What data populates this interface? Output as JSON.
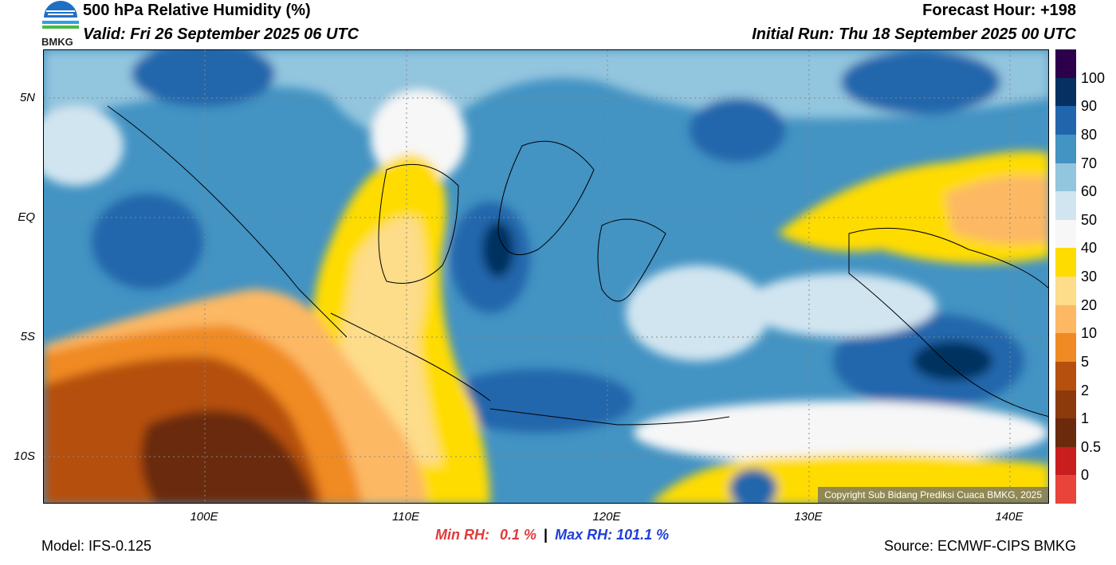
{
  "header": {
    "title": "500 hPa Relative Humidity (%)",
    "valid": "Valid: Fri 26 September 2025 06 UTC",
    "forecast_hour": "Forecast Hour: +198",
    "initial_run": "Initial Run: Thu 18 September 2025 00 UTC"
  },
  "logo": {
    "text": "BMKG",
    "icon": "bmkg-logo"
  },
  "map": {
    "lon_range": [
      92,
      142
    ],
    "lat_range": [
      -12.0,
      7.0
    ],
    "grid": true,
    "y_ticks": [
      {
        "lat": 5,
        "label": "5N"
      },
      {
        "lat": 0,
        "label": "EQ"
      },
      {
        "lat": -5,
        "label": "5S"
      },
      {
        "lat": -10,
        "label": "10S"
      }
    ],
    "x_ticks": [
      {
        "lon": 100,
        "label": "100E"
      },
      {
        "lon": 110,
        "label": "110E"
      },
      {
        "lon": 120,
        "label": "120E"
      },
      {
        "lon": 130,
        "label": "130E"
      },
      {
        "lon": 140,
        "label": "140E"
      }
    ],
    "copyright": "Copyright Sub Bidang Prediksi Cuaca BMKG, 2025"
  },
  "colorbar": {
    "levels": [
      "0",
      "0.5",
      "1",
      "2",
      "5",
      "10",
      "20",
      "30",
      "40",
      "50",
      "60",
      "70",
      "80",
      "90",
      "100"
    ],
    "colors": [
      "#e8443a",
      "#c81e1e",
      "#6b2a0c",
      "#8c3a0c",
      "#b5500e",
      "#f08a24",
      "#fdb863",
      "#fddc8a",
      "#ffdc00",
      "#f7f7f7",
      "#d1e5f0",
      "#92c5de",
      "#4393c3",
      "#2166ac",
      "#053061",
      "#2d004b"
    ]
  },
  "footer": {
    "model": "Model: IFS-0.125",
    "min_label": "Min RH:",
    "min_value": "0.1 %",
    "separator": "|",
    "max_label": "Max RH:",
    "max_value": "101.1 %",
    "source": "Source: ECMWF-CIPS BMKG"
  }
}
